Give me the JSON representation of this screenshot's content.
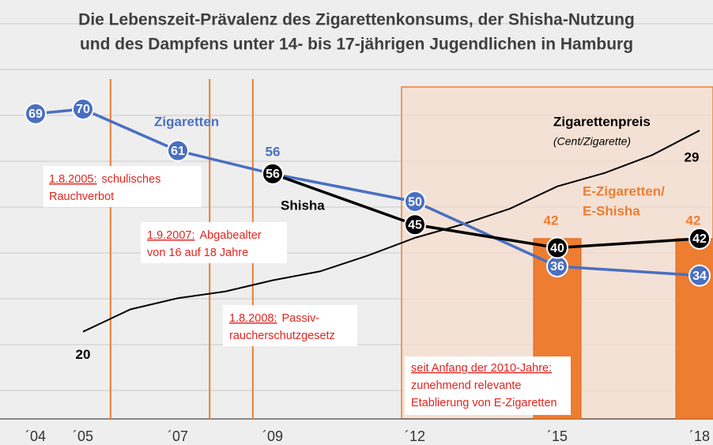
{
  "chart_data": {
    "type": "line",
    "title": [
      "Die Lebenszeit-Prävalenz des Zigarettenkonsums, der Shisha-Nutzung",
      "und des Dampfens unter 14- bis 17-jährigen Jugendlichen in Hamburg"
    ],
    "xlim": [
      2003.25,
      2018.283
    ],
    "xticks": [
      {
        "value": 2004,
        "label": "´04"
      },
      {
        "value": 2005,
        "label": "´05"
      },
      {
        "value": 2007,
        "label": "´07"
      },
      {
        "value": 2009,
        "label": "´09"
      },
      {
        "value": 2012,
        "label": "´12"
      },
      {
        "value": 2015,
        "label": "´15"
      },
      {
        "value": 2018,
        "label": "´18"
      }
    ],
    "ylim": [
      3,
      76.5
    ],
    "y2lim": [
      16.1,
      31.3
    ],
    "series": [
      {
        "name": [
          "Zigaretten"
        ],
        "type": "line",
        "color": "#4a6fc1",
        "x": [
          2004,
          2005,
          2007,
          2009,
          2012,
          2015,
          2018
        ],
        "values": [
          69,
          70,
          61,
          56,
          50,
          36,
          34
        ]
      },
      {
        "name": [
          "Shisha"
        ],
        "type": "line",
        "color": "#000000",
        "x": [
          2009,
          2012,
          2015,
          2018
        ],
        "values": [
          56,
          45,
          40,
          42
        ]
      },
      {
        "name": [
          "Zigarettenpreis"
        ],
        "unit": "(Cent/Zigarette)",
        "type": "line",
        "axis": "y2",
        "color": "#000000",
        "x": [
          2005,
          2006,
          2007,
          2008,
          2009,
          2010,
          2011,
          2012,
          2013,
          2014,
          2015,
          2016,
          2017,
          2018
        ],
        "values": [
          20,
          21,
          21.5,
          21.8,
          22.3,
          22.7,
          23.4,
          24.2,
          24.8,
          25.5,
          26.5,
          27.1,
          27.9,
          29
        ]
      },
      {
        "name": [
          "E-Zigaretten/",
          "E-Shisha"
        ],
        "type": "bar",
        "color": "#ed7d31",
        "x": [
          2015,
          2018
        ],
        "values": [
          42,
          42
        ]
      }
    ],
    "events": [
      {
        "x": 2005.58,
        "date": "1.8.2005:",
        "lines": [
          "schulisches",
          "Rauchverbot"
        ]
      },
      {
        "x": 2007.67,
        "date": "1.9.2007:",
        "lines": [
          "Abgabealter",
          "von 16 auf 18 Jahre"
        ]
      },
      {
        "x": 2008.58,
        "date": "1.8.2008:",
        "lines": [
          "Passiv-",
          "raucherschutzgesetz"
        ]
      }
    ],
    "note": [
      "seit Anfang der 2010-Jahre:",
      "zunehmend relevante",
      "Etablierung von E-Zigaretten"
    ]
  }
}
